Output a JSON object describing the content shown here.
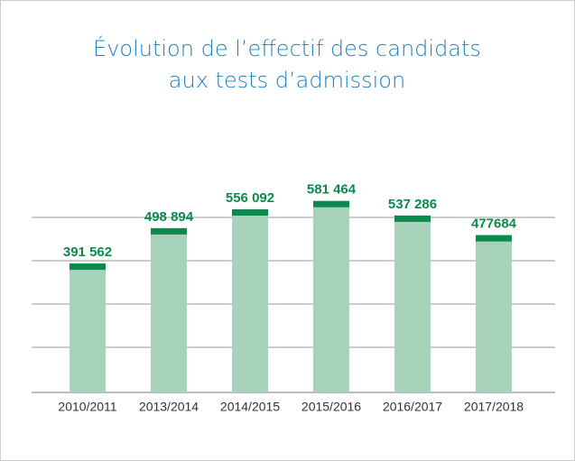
{
  "chart_data": {
    "type": "bar",
    "title": [
      "Évolution de l’effectif des candidats",
      "aux tests d’admission"
    ],
    "categories": [
      "2010/2011",
      "2013/2014",
      "2014/2015",
      "2015/2016",
      "2016/2017",
      "2017/2018"
    ],
    "values": [
      391562,
      498894,
      556092,
      581464,
      537286,
      477684
    ],
    "value_labels": [
      "391 562",
      "498 894",
      "556 092",
      "581 464",
      "537 286",
      "477684"
    ],
    "color": "#a8d3bb",
    "cap_color": "#0b8a4e",
    "ylim": [
      0,
      600000
    ],
    "grid": true
  }
}
